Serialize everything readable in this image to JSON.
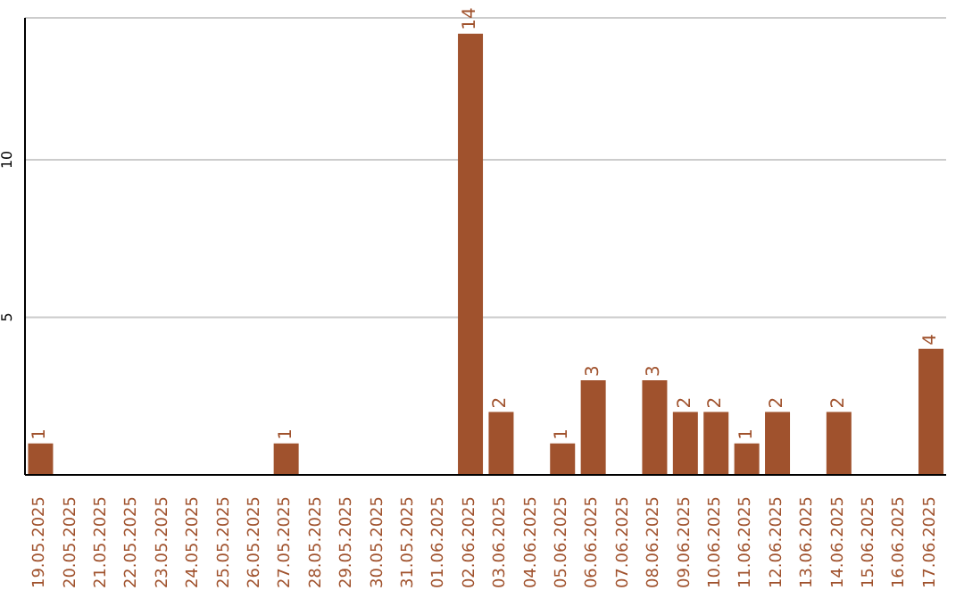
{
  "chart_data": {
    "type": "bar",
    "categories": [
      "19.05.2025",
      "20.05.2025",
      "21.05.2025",
      "22.05.2025",
      "23.05.2025",
      "24.05.2025",
      "25.05.2025",
      "26.05.2025",
      "27.05.2025",
      "28.05.2025",
      "29.05.2025",
      "30.05.2025",
      "31.05.2025",
      "01.06.2025",
      "02.06.2025",
      "03.06.2025",
      "04.06.2025",
      "05.06.2025",
      "06.06.2025",
      "07.06.2025",
      "08.06.2025",
      "09.06.2025",
      "10.06.2025",
      "11.06.2025",
      "12.06.2025",
      "13.06.2025",
      "14.06.2025",
      "15.06.2025",
      "16.06.2025",
      "17.06.2025"
    ],
    "values": [
      1,
      0,
      0,
      0,
      0,
      0,
      0,
      0,
      1,
      0,
      0,
      0,
      0,
      0,
      14,
      2,
      0,
      1,
      3,
      0,
      3,
      2,
      2,
      1,
      2,
      0,
      2,
      0,
      0,
      4
    ],
    "value_labels": [
      "1",
      null,
      null,
      null,
      null,
      null,
      null,
      null,
      "1",
      null,
      null,
      null,
      null,
      null,
      "14",
      "2",
      null,
      "1",
      "3",
      null,
      "3",
      "2",
      "2",
      "1",
      "2",
      null,
      "2",
      null,
      null,
      "4"
    ],
    "color": "#a0522d",
    "ylim": [
      0,
      14.5
    ],
    "yticks": [
      5,
      10
    ],
    "grid": "y"
  }
}
